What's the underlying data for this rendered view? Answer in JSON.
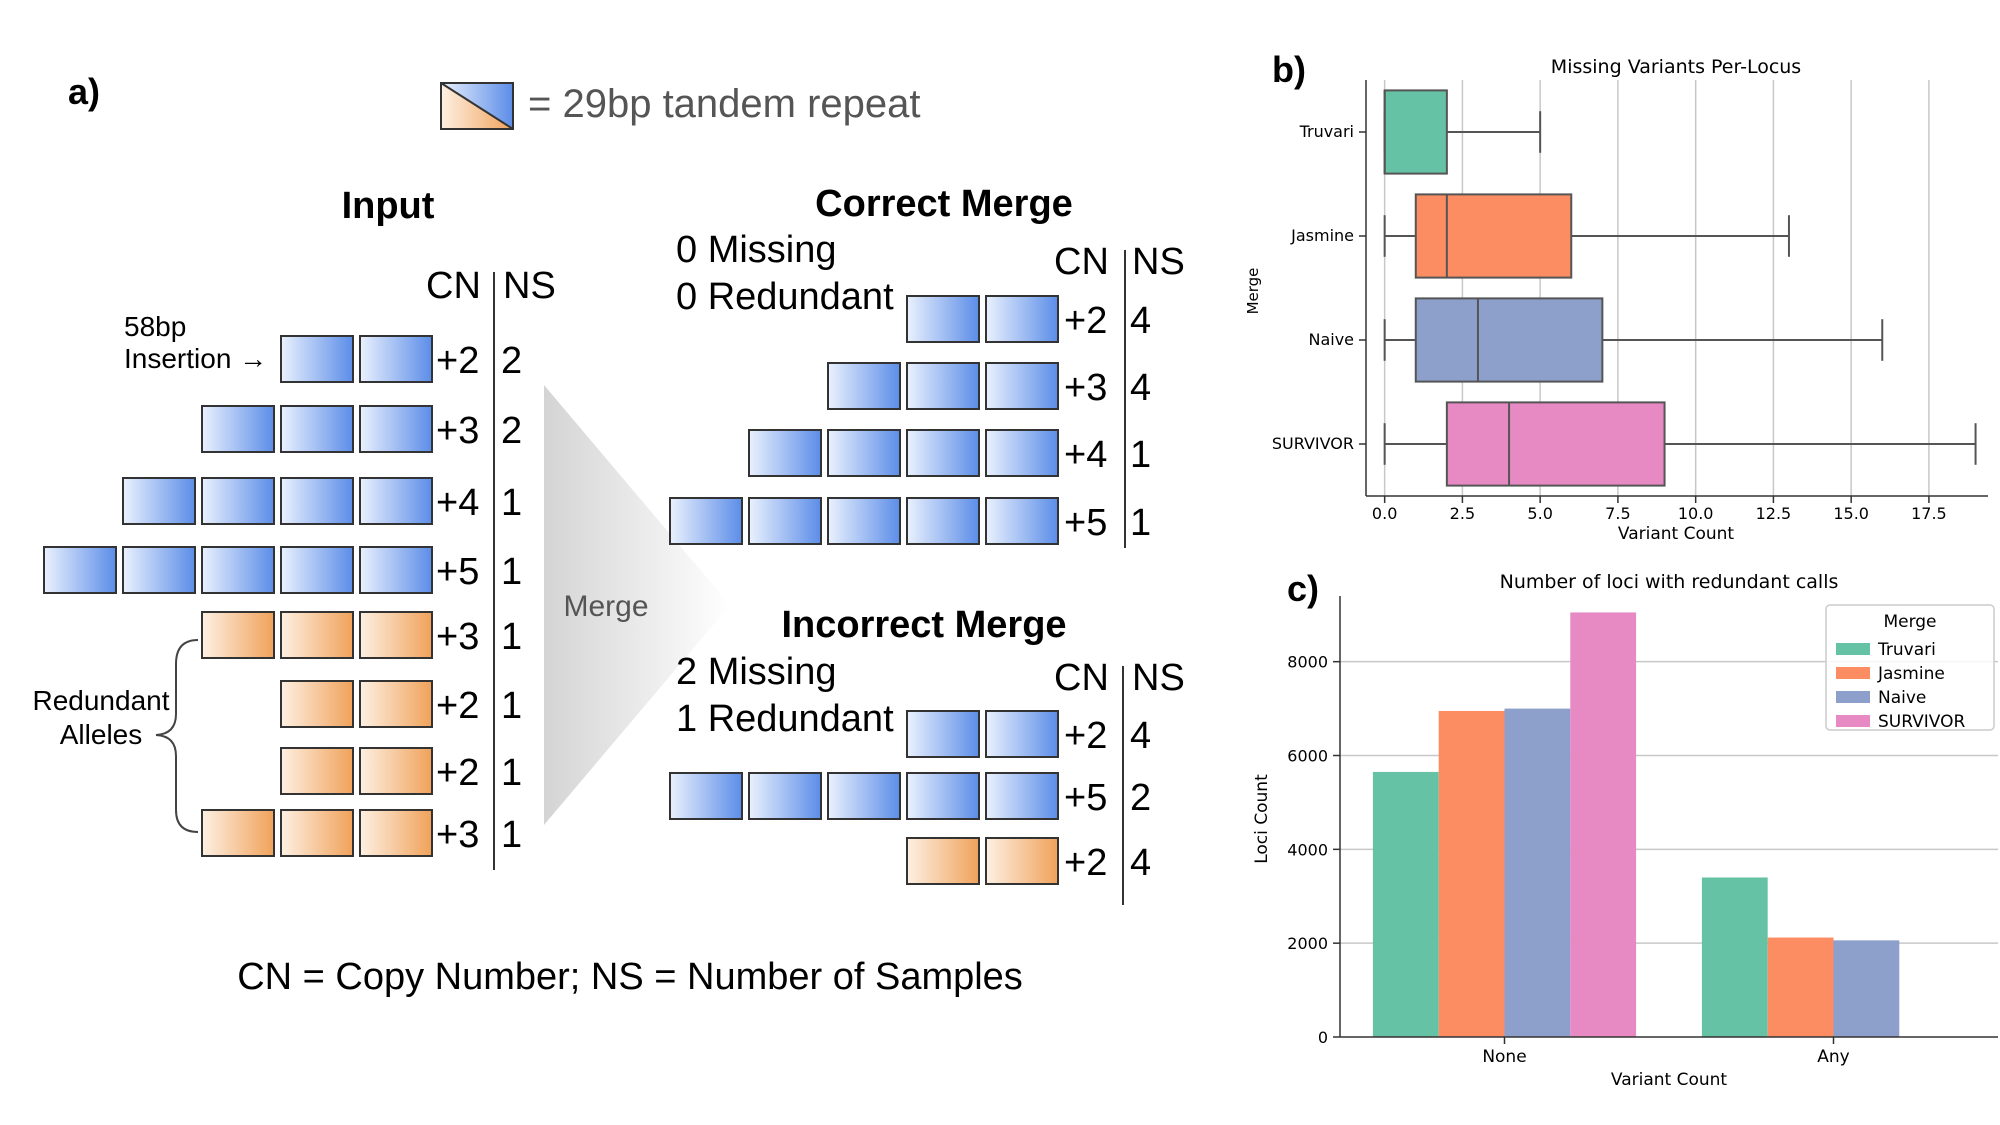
{
  "panel_a": {
    "label": "a)",
    "legend_text": "= 29bp tandem repeat",
    "input_title": "Input",
    "cn_header": "CN",
    "ns_header": "NS",
    "insertion_line1": "58bp",
    "insertion_line2": "Insertion →",
    "redundant_line1": "Redundant",
    "redundant_line2": "Alleles",
    "merge_label": "Merge",
    "input_rows": [
      {
        "cn": "+2",
        "ns": "2",
        "kind": "blue",
        "count": 2
      },
      {
        "cn": "+3",
        "ns": "2",
        "kind": "blue",
        "count": 3
      },
      {
        "cn": "+4",
        "ns": "1",
        "kind": "blue",
        "count": 4
      },
      {
        "cn": "+5",
        "ns": "1",
        "kind": "blue",
        "count": 5
      },
      {
        "cn": "+3",
        "ns": "1",
        "kind": "orange",
        "count": 3
      },
      {
        "cn": "+2",
        "ns": "1",
        "kind": "orange",
        "count": 2
      },
      {
        "cn": "+2",
        "ns": "1",
        "kind": "orange",
        "count": 2
      },
      {
        "cn": "+3",
        "ns": "1",
        "kind": "orange",
        "count": 3
      }
    ],
    "correct": {
      "title": "Correct Merge",
      "line1": "0 Missing",
      "line2": "0 Redundant",
      "rows": [
        {
          "cn": "+2",
          "ns": "4",
          "kind": "blue",
          "count": 2
        },
        {
          "cn": "+3",
          "ns": "4",
          "kind": "blue",
          "count": 3
        },
        {
          "cn": "+4",
          "ns": "1",
          "kind": "blue",
          "count": 4
        },
        {
          "cn": "+5",
          "ns": "1",
          "kind": "blue",
          "count": 5
        }
      ]
    },
    "incorrect": {
      "title": "Incorrect Merge",
      "line1": "2 Missing",
      "line2": "1 Redundant",
      "rows": [
        {
          "cn": "+2",
          "ns": "4",
          "kind": "blue",
          "count": 2
        },
        {
          "cn": "+5",
          "ns": "2",
          "kind": "blue",
          "count": 5
        },
        {
          "cn": "+2",
          "ns": "4",
          "kind": "orange",
          "count": 2
        }
      ]
    },
    "footer": "CN = Copy Number;  NS = Number of Samples"
  },
  "chart_data": [
    {
      "panel_label": "b)",
      "type": "box",
      "orientation": "horizontal",
      "title": "Missing Variants Per-Locus",
      "xlabel": "Variant Count",
      "ylabel": "Merge",
      "xlim": [
        -0.6,
        19.4
      ],
      "xticks": [
        0.0,
        2.5,
        5.0,
        7.5,
        10.0,
        12.5,
        15.0,
        17.5
      ],
      "xtick_labels": [
        "0.0",
        "2.5",
        "5.0",
        "7.5",
        "10.0",
        "12.5",
        "15.0",
        "17.5"
      ],
      "grid": "x",
      "series": [
        {
          "name": "Truvari",
          "whisker_low": 0,
          "q1": 0,
          "median": 0,
          "q3": 2,
          "whisker_high": 5,
          "color": "#66c2a5"
        },
        {
          "name": "Jasmine",
          "whisker_low": 0,
          "q1": 1,
          "median": 2,
          "q3": 6,
          "whisker_high": 13,
          "color": "#fc8d62"
        },
        {
          "name": "Naive",
          "whisker_low": 0,
          "q1": 1,
          "median": 3,
          "q3": 7,
          "whisker_high": 16,
          "color": "#8da0cb"
        },
        {
          "name": "SURVIVOR",
          "whisker_low": 0,
          "q1": 2,
          "median": 4,
          "q3": 9,
          "whisker_high": 19,
          "color": "#e78ac3"
        }
      ]
    },
    {
      "panel_label": "c)",
      "type": "bar",
      "title": "Number of loci with redundant calls",
      "xlabel": "Variant Count",
      "ylabel": "Loci Count",
      "categories": [
        "None",
        "Any"
      ],
      "ylim": [
        0,
        9400
      ],
      "yticks": [
        0,
        2000,
        4000,
        6000,
        8000
      ],
      "grid": "y",
      "legend_title": "Merge",
      "legend_position": "top-right",
      "series": [
        {
          "name": "Truvari",
          "color": "#66c2a5",
          "values": [
            5650,
            3400
          ]
        },
        {
          "name": "Jasmine",
          "color": "#fc8d62",
          "values": [
            6950,
            2120
          ]
        },
        {
          "name": "Naive",
          "color": "#8da0cb",
          "values": [
            7000,
            2060
          ]
        },
        {
          "name": "SURVIVOR",
          "color": "#e78ac3",
          "values": [
            9050,
            0
          ]
        }
      ]
    }
  ]
}
